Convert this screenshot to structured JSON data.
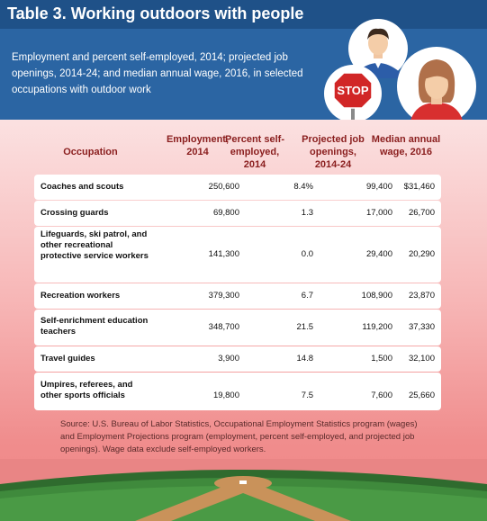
{
  "title": "Table 3. Working outdoors with people",
  "subtitle": "Employment and percent self-employed, 2014; projected job openings, 2014-24; and median annual wage, 2016, in selected occupations with outdoor work",
  "stop_sign_text": "STOP",
  "columns": {
    "occupation": "Occupation",
    "employment": "Employment, 2014",
    "self_employed": "Percent self-employed, 2014",
    "openings": "Projected job openings, 2014-24",
    "wage": "Median annual wage, 2016"
  },
  "rows": [
    {
      "occupation": "Coaches and scouts",
      "employment": "250,600",
      "self_employed": "8.4%",
      "openings": "99,400",
      "wage": "$31,460"
    },
    {
      "occupation": "Crossing guards",
      "employment": "69,800",
      "self_employed": "1.3",
      "openings": "17,000",
      "wage": "26,700"
    },
    {
      "occupation": "Lifeguards, ski patrol, and other recreational protective service workers",
      "employment": "141,300",
      "self_employed": "0.0",
      "openings": "29,400",
      "wage": "20,290"
    },
    {
      "occupation": "Recreation workers",
      "employment": "379,300",
      "self_employed": "6.7",
      "openings": "108,900",
      "wage": "23,870"
    },
    {
      "occupation": "Self-enrichment education teachers",
      "employment": "348,700",
      "self_employed": "21.5",
      "openings": "119,200",
      "wage": "37,330"
    },
    {
      "occupation": "Travel guides",
      "employment": "3,900",
      "self_employed": "14.8",
      "openings": "1,500",
      "wage": "32,100"
    },
    {
      "occupation": "Umpires, referees, and other sports officials",
      "employment": "19,800",
      "self_employed": "7.5",
      "openings": "7,600",
      "wage": "25,660"
    }
  ],
  "source": "Source: U.S. Bureau of Labor Statistics, Occupational Employment Statistics program (wages) and Employment Projections program (employment, percent self-employed, and projected job openings). Wage data exclude self-employed workers.",
  "colors": {
    "header_blue": "#2b65a3",
    "title_bar": "#1f5188",
    "header_text": "#8a1e1e",
    "body_top": "#fbe1e1",
    "body_bottom": "#ee8585"
  }
}
